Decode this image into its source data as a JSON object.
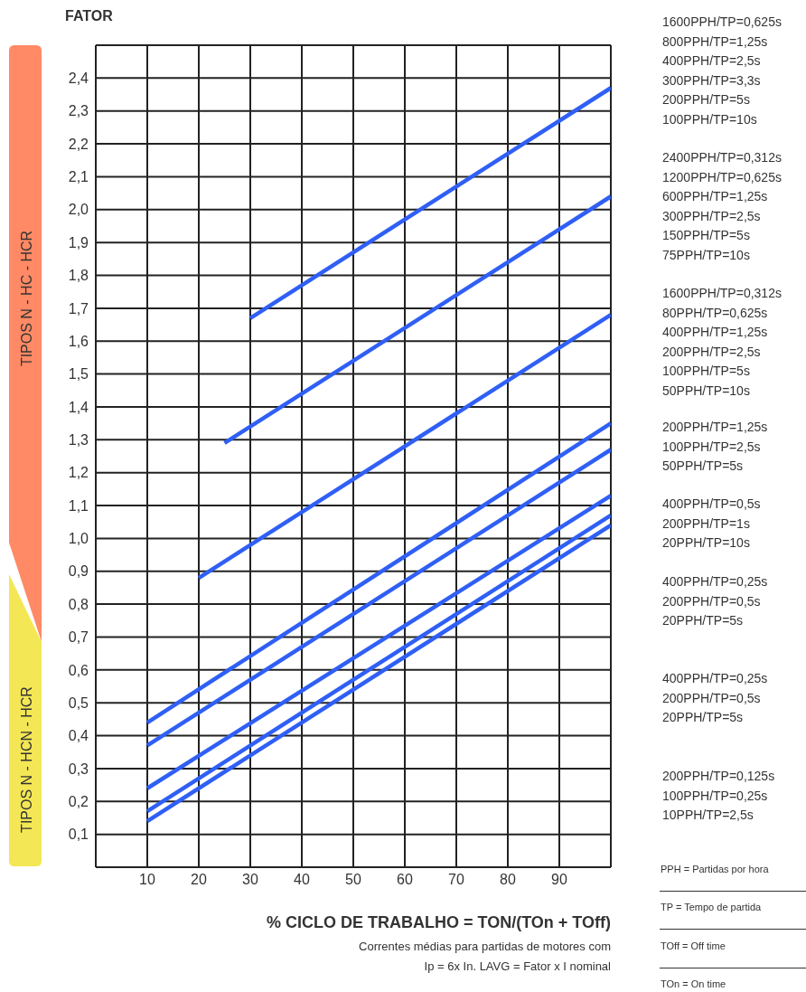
{
  "chart_data": {
    "type": "line",
    "ylabel": "FATOR",
    "xlabel": "% CICLO DE TRABALHO = TON/(TOn + TOff)",
    "xlim": [
      0,
      100
    ],
    "xticks": [
      {
        "value": 0,
        "label": null
      },
      10,
      20,
      30,
      40,
      50,
      60,
      70,
      80,
      90,
      {
        "value": 100,
        "label": null
      }
    ],
    "ylim": [
      0,
      2.5
    ],
    "yticks": [
      {
        "value": 0,
        "label": null
      },
      {
        "value": 0.1,
        "label": "0,1"
      },
      {
        "value": 0.2,
        "label": "0,2"
      },
      {
        "value": 0.3,
        "label": "0,3"
      },
      {
        "value": 0.4,
        "label": "0,4"
      },
      {
        "value": 0.5,
        "label": "0,5"
      },
      {
        "value": 0.6,
        "label": "0,6"
      },
      {
        "value": 0.7,
        "label": "0,7"
      },
      {
        "value": 0.8,
        "label": "0,8"
      },
      {
        "value": 0.9,
        "label": "0,9"
      },
      {
        "value": 1.0,
        "label": "1,0"
      },
      {
        "value": 1.1,
        "label": "1,1"
      },
      {
        "value": 1.2,
        "label": "1,2"
      },
      {
        "value": 1.3,
        "label": "1,3"
      },
      {
        "value": 1.4,
        "label": "1,4"
      },
      {
        "value": 1.5,
        "label": "1,5"
      },
      {
        "value": 1.6,
        "label": "1,6"
      },
      {
        "value": 1.7,
        "label": "1,7"
      },
      {
        "value": 1.8,
        "label": "1,8"
      },
      {
        "value": 1.9,
        "label": "1,9"
      },
      {
        "value": 2.0,
        "label": "2,0"
      },
      {
        "value": 2.1,
        "label": "2,1"
      },
      {
        "value": 2.2,
        "label": "2,2"
      },
      {
        "value": 2.3,
        "label": "2,3"
      },
      {
        "value": 2.4,
        "label": "2,4"
      },
      {
        "value": 2.5,
        "label": null
      }
    ],
    "grid": true,
    "marker": "none",
    "line_style": "solid",
    "series": [
      {
        "color": "#2f5ff5",
        "x": [
          30,
          100
        ],
        "values": [
          1.67,
          2.37
        ]
      },
      {
        "color": "#2f5ff5",
        "x": [
          25,
          100
        ],
        "values": [
          1.29,
          2.04
        ]
      },
      {
        "color": "#2f5ff5",
        "x": [
          20,
          100
        ],
        "values": [
          0.88,
          1.68
        ]
      },
      {
        "color": "#2f5ff5",
        "x": [
          10,
          100
        ],
        "values": [
          0.44,
          1.35
        ]
      },
      {
        "color": "#2f5ff5",
        "x": [
          10,
          100
        ],
        "values": [
          0.37,
          1.27
        ]
      },
      {
        "color": "#2f5ff5",
        "x": [
          10,
          100
        ],
        "values": [
          0.24,
          1.13
        ]
      },
      {
        "color": "#2f5ff5",
        "x": [
          10,
          100
        ],
        "values": [
          0.17,
          1.07
        ]
      },
      {
        "color": "#2f5ff5",
        "x": [
          10,
          100
        ],
        "values": [
          0.14,
          1.04
        ]
      }
    ],
    "annotations": [
      "TIPOS N - HC - HCR",
      "TIPOS N - HCN - HCR",
      "Correntes médias para partidas de motores com\nIp = 6x In. LAVG = Fator x I nominal",
      "1600PPH/TP=0,625s\n800PPH/TP=1,25s\n400PPH/TP=2,5s\n300PPH/TP=3,3s\n200PPH/TP=5s\n100PPH/TP=10s",
      "2400PPH/TP=0,312s\n1200PPH/TP=0,625s\n600PPH/TP=1,25s\n300PPH/TP=2,5s\n150PPH/TP=5s\n75PPH/TP=10s",
      "1600PPH/TP=0,312s\n80PPH/TP=0,625s\n400PPH/TP=1,25s\n200PPH/TP=2,5s\n100PPH/TP=5s\n50PPH/TP=10s",
      "200PPH/TP=1,25s\n100PPH/TP=2,5s\n50PPH/TP=5s",
      "400PPH/TP=0,5s\n200PPH/TP=1s\n20PPH/TP=10s",
      "400PPH/TP=0,25s\n200PPH/TP=0,5s\n20PPH/TP=5s",
      "400PPH/TP=0,25s\n200PPH/TP=0,5s\n20PPH/TP=5s",
      "200PPH/TP=0,125s\n100PPH/TP=0,25s\n10PPH/TP=2,5s",
      "PPH = Partidas por hora",
      "TP = Tempo de partida",
      "TOff = Off time",
      "TOn = On time"
    ]
  }
}
